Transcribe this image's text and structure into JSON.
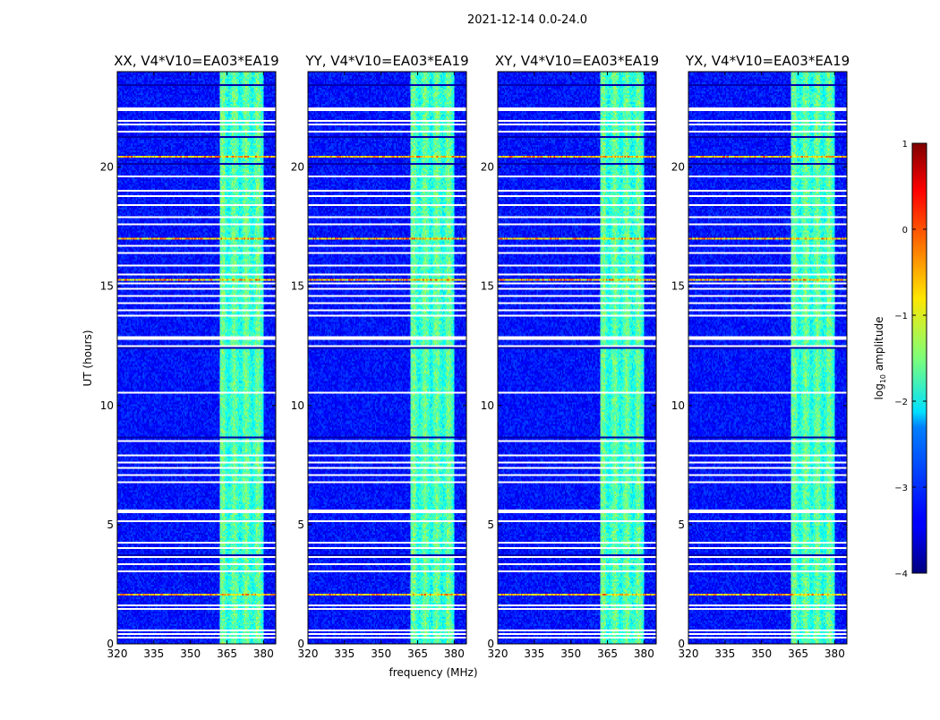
{
  "figure": {
    "suptitle": "2021-12-14 0.0-24.0",
    "xlabel": "frequency (MHz)",
    "ylabel": "UT (hours)"
  },
  "colorbar": {
    "label_main": "log",
    "label_sub": "10",
    "label_rest": " amplitude",
    "ticks": [
      "1",
      "0",
      "−1",
      "−2",
      "−3",
      "−4"
    ],
    "tick_values": [
      1,
      0,
      -1,
      -2,
      -3,
      -4
    ],
    "range": [
      -4,
      1
    ],
    "colormap": "jet"
  },
  "chart_data": {
    "type": "heatmap",
    "title": "2021-12-14 0.0-24.0",
    "xlabel": "frequency (MHz)",
    "ylabel": "UT (hours)",
    "xlim": [
      320,
      385
    ],
    "ylim": [
      0,
      24
    ],
    "x_ticks": [
      320,
      335,
      350,
      365,
      380
    ],
    "y_ticks": [
      0,
      5,
      10,
      15,
      20
    ],
    "x_tick_labels": [
      "320",
      "335",
      "350",
      "365",
      "380"
    ],
    "y_tick_labels": [
      "0",
      "5",
      "10",
      "15",
      "20"
    ],
    "colorbar_range": [
      -4,
      1
    ],
    "colorbar_label": "log10 amplitude",
    "panels": [
      {
        "title": "XX, V4*V10=EA03*EA19",
        "pol": "XX"
      },
      {
        "title": "YY, V4*V10=EA03*EA19",
        "pol": "YY"
      },
      {
        "title": "XY, V4*V10=EA03*EA19",
        "pol": "XY"
      },
      {
        "title": "YX, V4*V10=EA03*EA19",
        "pol": "YX"
      }
    ],
    "bright_band_mhz": [
      362,
      380
    ],
    "bright_band_level": -1.8,
    "background_level": -3.3,
    "rfi_rows_hours": [
      17.0,
      15.3,
      20.5,
      2.0
    ],
    "flagged_rows_hours": [
      0.2,
      0.4,
      0.5,
      1.4,
      1.6,
      3.0,
      3.3,
      3.6,
      4.0,
      4.2,
      5.1,
      5.5,
      5.6,
      6.8,
      7.1,
      7.4,
      7.6,
      7.9,
      8.5,
      10.5,
      12.5,
      12.8,
      12.9,
      13.8,
      14.0,
      14.3,
      14.6,
      14.9,
      15.1,
      15.5,
      15.9,
      16.4,
      16.7,
      17.6,
      17.9,
      18.4,
      18.8,
      19.0,
      19.6,
      21.5,
      21.8,
      22.0,
      22.4,
      22.5
    ],
    "dark_rows_hours": [
      3.7,
      8.65,
      12.45,
      21.3,
      20.2,
      23.5
    ]
  }
}
